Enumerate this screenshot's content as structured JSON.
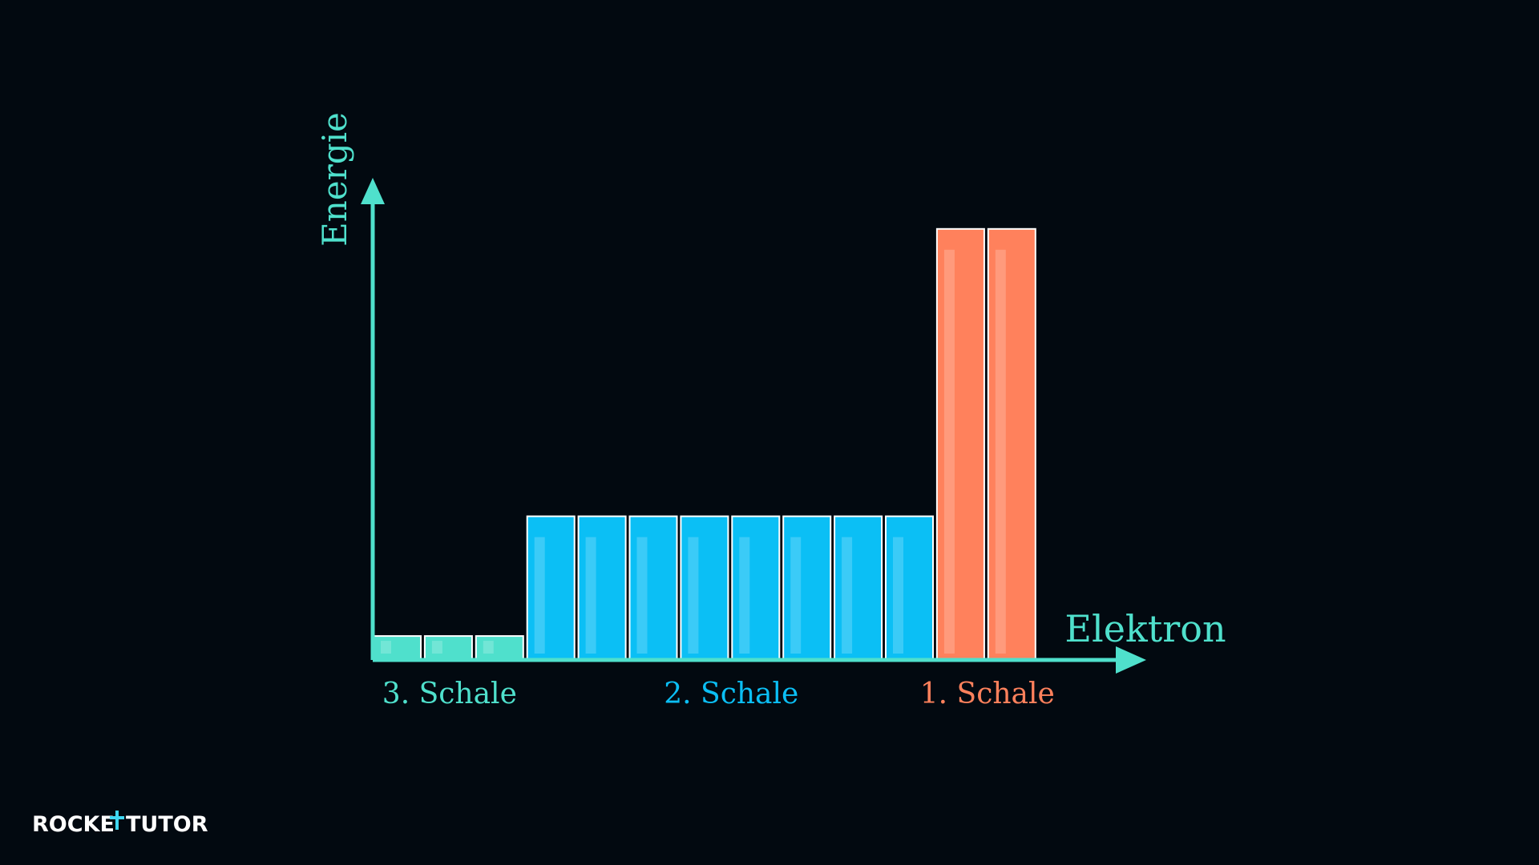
{
  "chart_data": {
    "type": "bar",
    "x_label": "Elektron",
    "y_label": "Energie",
    "axis_color": "#4fe0cc",
    "ylim": [
      0,
      100
    ],
    "series": [
      {
        "name": "3. Schale",
        "color": "#4fe0cc",
        "values": [
          5,
          5,
          5
        ]
      },
      {
        "name": "2. Schale",
        "color": "#0bbff5",
        "values": [
          30,
          30,
          30,
          30,
          30,
          30,
          30,
          30
        ]
      },
      {
        "name": "1. Schale",
        "color": "#ff815c",
        "values": [
          90,
          90
        ]
      }
    ]
  },
  "logo": {
    "left": "ROCKE",
    "right": "TUTOR"
  }
}
